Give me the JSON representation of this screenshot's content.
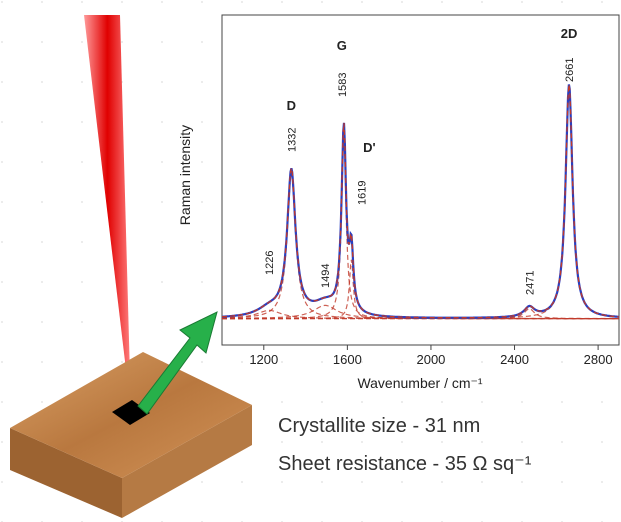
{
  "chart_data": {
    "type": "line",
    "x_label": "Wavenumber / cm⁻¹",
    "y_label": "Raman intensity",
    "xlim": [
      1000,
      2900
    ],
    "xticks": [
      1200,
      1600,
      2000,
      2400,
      2800
    ],
    "ylim": [
      0,
      100
    ],
    "baseline": 8,
    "measured_color": "#2b3fbf",
    "fit_color": "#c0392b",
    "peaks": [
      {
        "position": 1226,
        "height": 2.5,
        "width": 70
      },
      {
        "name": "D",
        "position": 1332,
        "height": 44,
        "width": 24
      },
      {
        "position": 1494,
        "height": 4,
        "width": 70
      },
      {
        "name": "G",
        "position": 1583,
        "height": 56,
        "width": 13
      },
      {
        "name": "D'",
        "position": 1619,
        "height": 18,
        "width": 11
      },
      {
        "position": 2471,
        "height": 3,
        "width": 30
      },
      {
        "name": "2D",
        "position": 2661,
        "height": 71,
        "width": 20
      }
    ]
  },
  "caption": {
    "lines": [
      "Crystallite size - 31 nm",
      "Sheet resistance - 35 Ω sq⁻¹"
    ]
  }
}
